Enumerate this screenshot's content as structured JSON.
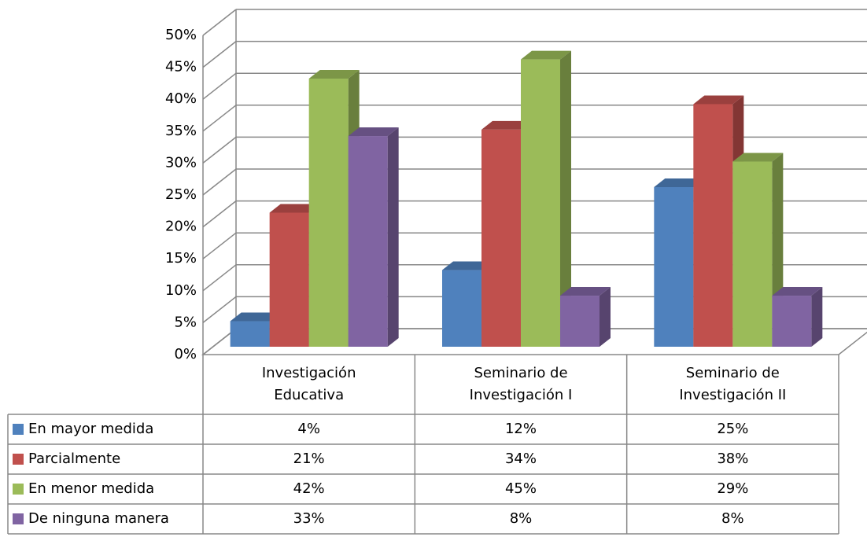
{
  "chart_data": {
    "type": "bar3d",
    "categories": [
      "Investigación Educativa",
      "Seminario de Investigación I",
      "Seminario de Investigación II"
    ],
    "series": [
      {
        "name": "En mayor medida",
        "color": "#4f81bd",
        "values": [
          4,
          12,
          25
        ],
        "value_labels": [
          "4%",
          "12%",
          "25%"
        ]
      },
      {
        "name": "Parcialmente",
        "color": "#c0504d",
        "values": [
          21,
          34,
          38
        ],
        "value_labels": [
          "21%",
          "34%",
          "38%"
        ]
      },
      {
        "name": "En menor medida",
        "color": "#9bbb59",
        "values": [
          42,
          45,
          29
        ],
        "value_labels": [
          "42%",
          "45%",
          "29%"
        ]
      },
      {
        "name": "De ninguna manera",
        "color": "#8064a2",
        "values": [
          33,
          8,
          8
        ],
        "value_labels": [
          "33%",
          "8%",
          "8%"
        ]
      }
    ],
    "ylim": [
      0,
      50
    ],
    "yticks": [
      {
        "value": 0,
        "label": "0%"
      },
      {
        "value": 5,
        "label": "5%"
      },
      {
        "value": 10,
        "label": "10%"
      },
      {
        "value": 15,
        "label": "15%"
      },
      {
        "value": 20,
        "label": "20%"
      },
      {
        "value": 25,
        "label": "25%"
      },
      {
        "value": 30,
        "label": "30%"
      },
      {
        "value": 35,
        "label": "35%"
      },
      {
        "value": 40,
        "label": "40%"
      },
      {
        "value": 45,
        "label": "45%"
      },
      {
        "value": 50,
        "label": "50%"
      }
    ],
    "grid": true,
    "data_table": true
  }
}
